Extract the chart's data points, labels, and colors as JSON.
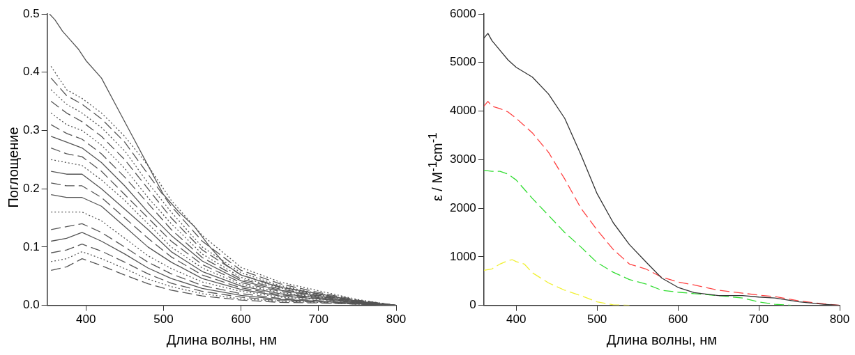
{
  "chart_data": [
    {
      "type": "line",
      "xlabel": "Длина волны, нм",
      "ylabel": "Поглощение",
      "xlim": [
        350,
        800
      ],
      "xticks": [
        400,
        500,
        600,
        700,
        800
      ],
      "ylim": [
        0,
        0.5
      ],
      "yticks": [
        {
          "value": 0,
          "label": "0.0"
        },
        {
          "value": 0.1,
          "label": "0.1"
        },
        {
          "value": 0.2,
          "label": "0.2"
        },
        {
          "value": 0.3,
          "label": "0.3"
        },
        {
          "value": 0.4,
          "label": "0.4"
        },
        {
          "value": 0.5,
          "label": "0.5"
        }
      ],
      "x": [
        355,
        375,
        395,
        420,
        450,
        480,
        510,
        550,
        600,
        650,
        700,
        750,
        800
      ],
      "series": [
        {
          "color": "#555555",
          "line_style": "solid",
          "x": [
            353,
            360,
            370,
            380,
            390,
            400,
            420,
            440,
            460,
            480,
            500,
            520,
            540,
            560,
            580,
            600,
            650,
            700,
            750,
            800
          ],
          "values": [
            0.5,
            0.49,
            0.47,
            0.455,
            0.44,
            0.42,
            0.39,
            0.34,
            0.29,
            0.24,
            0.19,
            0.16,
            0.135,
            0.1,
            0.07,
            0.052,
            0.031,
            0.02,
            0.007,
            0
          ]
        },
        {
          "color": "#555555",
          "line_style": "dotted",
          "values": [
            0.41,
            0.37,
            0.355,
            0.33,
            0.29,
            0.24,
            0.18,
            0.12,
            0.065,
            0.04,
            0.025,
            0.01,
            0
          ]
        },
        {
          "color": "#555555",
          "line_style": "dashed",
          "values": [
            0.39,
            0.36,
            0.345,
            0.32,
            0.28,
            0.225,
            0.17,
            0.11,
            0.06,
            0.037,
            0.022,
            0.009,
            0
          ]
        },
        {
          "color": "#555555",
          "line_style": "dotted",
          "values": [
            0.37,
            0.345,
            0.33,
            0.305,
            0.265,
            0.21,
            0.16,
            0.1,
            0.056,
            0.034,
            0.02,
            0.008,
            0
          ]
        },
        {
          "color": "#555555",
          "line_style": "dashed",
          "values": [
            0.35,
            0.33,
            0.315,
            0.29,
            0.25,
            0.2,
            0.15,
            0.095,
            0.052,
            0.032,
            0.019,
            0.008,
            0
          ]
        },
        {
          "color": "#555555",
          "line_style": "dotted",
          "values": [
            0.33,
            0.31,
            0.3,
            0.275,
            0.235,
            0.185,
            0.14,
            0.088,
            0.048,
            0.03,
            0.018,
            0.007,
            0
          ]
        },
        {
          "color": "#555555",
          "line_style": "dashed",
          "values": [
            0.31,
            0.295,
            0.285,
            0.26,
            0.22,
            0.175,
            0.13,
            0.082,
            0.045,
            0.028,
            0.017,
            0.007,
            0
          ]
        },
        {
          "color": "#555555",
          "line_style": "solid",
          "values": [
            0.29,
            0.28,
            0.27,
            0.245,
            0.205,
            0.16,
            0.12,
            0.076,
            0.042,
            0.026,
            0.016,
            0.006,
            0
          ]
        },
        {
          "color": "#555555",
          "line_style": "dashed",
          "values": [
            0.27,
            0.26,
            0.255,
            0.23,
            0.19,
            0.15,
            0.11,
            0.07,
            0.039,
            0.024,
            0.015,
            0.006,
            0
          ]
        },
        {
          "color": "#555555",
          "line_style": "dotted",
          "values": [
            0.25,
            0.245,
            0.24,
            0.215,
            0.18,
            0.14,
            0.1,
            0.064,
            0.036,
            0.022,
            0.014,
            0.005,
            0
          ]
        },
        {
          "color": "#555555",
          "line_style": "solid",
          "values": [
            0.23,
            0.225,
            0.225,
            0.2,
            0.165,
            0.13,
            0.092,
            0.058,
            0.033,
            0.02,
            0.013,
            0.005,
            0
          ]
        },
        {
          "color": "#555555",
          "line_style": "dashed",
          "values": [
            0.21,
            0.205,
            0.205,
            0.185,
            0.15,
            0.115,
            0.083,
            0.052,
            0.03,
            0.018,
            0.012,
            0.005,
            0
          ]
        },
        {
          "color": "#555555",
          "line_style": "solid",
          "values": [
            0.19,
            0.185,
            0.185,
            0.17,
            0.135,
            0.1,
            0.074,
            0.046,
            0.027,
            0.016,
            0.011,
            0.004,
            0
          ]
        },
        {
          "color": "#555555",
          "line_style": "dotted",
          "values": [
            0.16,
            0.16,
            0.16,
            0.145,
            0.115,
            0.085,
            0.063,
            0.04,
            0.024,
            0.014,
            0.01,
            0.004,
            0
          ]
        },
        {
          "color": "#555555",
          "line_style": "dashed",
          "values": [
            0.13,
            0.135,
            0.14,
            0.125,
            0.1,
            0.074,
            0.054,
            0.034,
            0.02,
            0.012,
            0.008,
            0.003,
            0
          ]
        },
        {
          "color": "#555555",
          "line_style": "solid",
          "values": [
            0.11,
            0.115,
            0.125,
            0.11,
            0.088,
            0.064,
            0.046,
            0.029,
            0.017,
            0.01,
            0.007,
            0.003,
            0
          ]
        },
        {
          "color": "#555555",
          "line_style": "dashed",
          "values": [
            0.09,
            0.095,
            0.105,
            0.093,
            0.074,
            0.054,
            0.038,
            0.024,
            0.014,
            0.008,
            0.006,
            0.002,
            0
          ]
        },
        {
          "color": "#555555",
          "line_style": "dotted",
          "values": [
            0.075,
            0.08,
            0.092,
            0.08,
            0.063,
            0.045,
            0.032,
            0.02,
            0.011,
            0.007,
            0.005,
            0.002,
            0
          ]
        },
        {
          "color": "#555555",
          "line_style": "dashed",
          "values": [
            0.06,
            0.066,
            0.08,
            0.068,
            0.052,
            0.037,
            0.026,
            0.016,
            0.009,
            0.005,
            0.004,
            0.002,
            0
          ]
        }
      ]
    },
    {
      "type": "line",
      "xlabel": "Длина волны, нм",
      "ylabel": "ε / M$^{-1}$cm$^{-1}$",
      "xlim": [
        360,
        800
      ],
      "xticks": [
        400,
        500,
        600,
        700,
        800
      ],
      "ylim": [
        0,
        6000
      ],
      "yticks": [
        0,
        1000,
        2000,
        3000,
        4000,
        5000,
        6000
      ],
      "series": [
        {
          "color": "#333333",
          "line_style": "solid",
          "x": [
            360,
            365,
            370,
            380,
            390,
            400,
            420,
            440,
            460,
            480,
            500,
            520,
            540,
            560,
            580,
            600,
            620,
            650,
            680,
            700,
            720,
            750,
            780,
            800
          ],
          "values": [
            5500,
            5600,
            5450,
            5250,
            5050,
            4900,
            4700,
            4350,
            3850,
            3100,
            2300,
            1700,
            1250,
            900,
            560,
            370,
            260,
            200,
            200,
            170,
            150,
            70,
            20,
            0
          ]
        },
        {
          "color": "#ff4040",
          "line_style": "dashed",
          "x": [
            360,
            365,
            370,
            380,
            390,
            400,
            420,
            440,
            460,
            480,
            500,
            520,
            540,
            560,
            580,
            600,
            620,
            650,
            680,
            700,
            720,
            750,
            780,
            800
          ],
          "values": [
            4100,
            4200,
            4100,
            4050,
            3980,
            3850,
            3550,
            3150,
            2600,
            2000,
            1550,
            1150,
            850,
            750,
            580,
            480,
            420,
            310,
            250,
            210,
            180,
            90,
            30,
            0
          ]
        },
        {
          "color": "#33dd33",
          "line_style": "dashed",
          "x": [
            360,
            370,
            380,
            390,
            400,
            420,
            440,
            460,
            480,
            500,
            520,
            540,
            560,
            580,
            600,
            620,
            650,
            680,
            700,
            720,
            740
          ],
          "values": [
            2780,
            2760,
            2760,
            2700,
            2580,
            2200,
            1850,
            1500,
            1200,
            880,
            680,
            530,
            440,
            310,
            270,
            240,
            200,
            150,
            70,
            20,
            0
          ]
        },
        {
          "color": "#f0f030",
          "line_style": "dashed",
          "x": [
            360,
            370,
            380,
            390,
            395,
            400,
            410,
            420,
            440,
            460,
            480,
            500,
            520,
            540
          ],
          "values": [
            720,
            750,
            850,
            920,
            940,
            900,
            850,
            670,
            460,
            310,
            200,
            70,
            10,
            0
          ]
        }
      ]
    }
  ]
}
